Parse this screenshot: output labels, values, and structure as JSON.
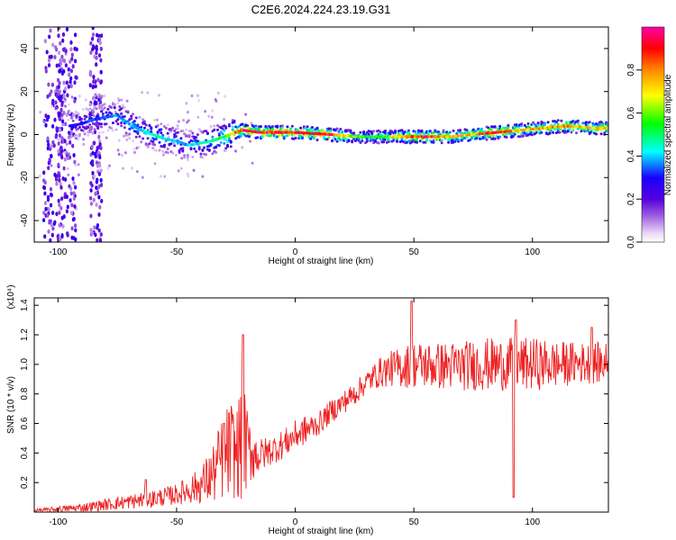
{
  "figure_title": "C2E6.2024.224.23.19.G31",
  "chart_data": [
    {
      "type": "heatmap",
      "title": "C2E6.2024.224.23.19.G31",
      "xlabel": "Height of straight line (km)",
      "ylabel": "Frequency (Hz)",
      "xlim": [
        -110,
        132
      ],
      "ylim": [
        -50,
        50
      ],
      "x_ticks": [
        -100,
        -50,
        0,
        50,
        100
      ],
      "x_tick_labels": [
        "-100",
        "-50",
        "0",
        "50",
        "100"
      ],
      "y_ticks": [
        -40,
        -20,
        0,
        20,
        40
      ],
      "y_tick_labels": [
        "-40",
        "-20",
        "0",
        "20",
        "40"
      ],
      "colorbar": {
        "label": "Normalized spectral amplitude",
        "range": [
          0,
          1
        ],
        "ticks": [
          0,
          0.2,
          0.4,
          0.6,
          0.8
        ],
        "tick_labels": [
          "0.0",
          "0.2",
          "0.4",
          "0.6",
          "0.8"
        ],
        "colormap": [
          "#ffffff",
          "#ead9f7",
          "#7700cc",
          "#1a00ff",
          "#00ffff",
          "#00ff00",
          "#ffff00",
          "#ff8800",
          "#ff0000",
          "#ff00aa"
        ]
      },
      "ridge": {
        "description": "frequency of peak spectral amplitude vs height",
        "x": [
          -95,
          -90,
          -85,
          -80,
          -75,
          -70,
          -65,
          -60,
          -55,
          -50,
          -45,
          -40,
          -35,
          -30,
          -25,
          -22,
          -15,
          0,
          15,
          25,
          35,
          45,
          55,
          65,
          75,
          85,
          95,
          105,
          115,
          125,
          132
        ],
        "y": [
          4,
          5,
          7,
          8,
          9,
          5,
          2,
          0,
          -2,
          -3,
          -5,
          -4,
          -3,
          -1,
          1,
          2,
          1,
          1,
          0,
          -1,
          -1,
          -1,
          -1,
          -1,
          0,
          1,
          2,
          3,
          4,
          3,
          3
        ],
        "amplitude": [
          0.3,
          0.3,
          0.35,
          0.35,
          0.4,
          0.4,
          0.45,
          0.45,
          0.45,
          0.4,
          0.4,
          0.45,
          0.5,
          0.55,
          0.85,
          0.95,
          0.95,
          0.95,
          0.95,
          0.6,
          0.55,
          0.8,
          0.95,
          0.75,
          0.8,
          0.95,
          0.75,
          0.8,
          0.85,
          0.75,
          0.8
        ]
      }
    },
    {
      "type": "line",
      "xlabel": "Height of straight line (km)",
      "ylabel": "SNR (10 * v/v)",
      "y_scale_label": "(x10⁴)",
      "xlim": [
        -110,
        132
      ],
      "ylim": [
        0,
        1.45
      ],
      "x_ticks": [
        -100,
        -50,
        0,
        50,
        100
      ],
      "x_tick_labels": [
        "-100",
        "-50",
        "0",
        "50",
        "100"
      ],
      "y_ticks": [
        0.2,
        0.4,
        0.6,
        0.8,
        1.0,
        1.2,
        1.4
      ],
      "y_tick_labels": [
        "0.2",
        "0.4",
        "0.6",
        "0.8",
        "1.0",
        "1.2",
        "1.4"
      ],
      "series": [
        {
          "color": "#ee2222",
          "x": [
            -110,
            -100,
            -90,
            -80,
            -70,
            -60,
            -50,
            -40,
            -35,
            -30,
            -27,
            -25,
            -22,
            -20,
            -15,
            -10,
            -5,
            0,
            5,
            10,
            15,
            20,
            25,
            30,
            35,
            40,
            45,
            50,
            60,
            70,
            80,
            90,
            100,
            110,
            120,
            132
          ],
          "y": [
            0.01,
            0.02,
            0.03,
            0.05,
            0.07,
            0.09,
            0.12,
            0.18,
            0.25,
            0.38,
            0.42,
            0.4,
            0.5,
            0.42,
            0.38,
            0.42,
            0.46,
            0.52,
            0.56,
            0.6,
            0.68,
            0.74,
            0.8,
            0.88,
            0.94,
            0.97,
            0.98,
            1.0,
            0.99,
            0.99,
            1.0,
            1.0,
            1.0,
            1.0,
            1.01,
            1.01
          ],
          "spread": [
            0.01,
            0.02,
            0.03,
            0.04,
            0.05,
            0.06,
            0.07,
            0.12,
            0.2,
            0.3,
            0.35,
            0.3,
            0.45,
            0.25,
            0.12,
            0.1,
            0.1,
            0.1,
            0.1,
            0.08,
            0.08,
            0.08,
            0.08,
            0.08,
            0.1,
            0.12,
            0.14,
            0.16,
            0.16,
            0.17,
            0.18,
            0.18,
            0.18,
            0.16,
            0.14,
            0.14
          ],
          "peaks": [
            {
              "x": -63,
              "y": 0.22
            },
            {
              "x": -30,
              "y": 0.6
            },
            {
              "x": -22,
              "y": 1.2
            },
            {
              "x": 49,
              "y": 1.43
            },
            {
              "x": 92,
              "y": 0.1
            },
            {
              "x": 93,
              "y": 1.3
            },
            {
              "x": 125,
              "y": 1.25
            }
          ]
        }
      ]
    }
  ]
}
